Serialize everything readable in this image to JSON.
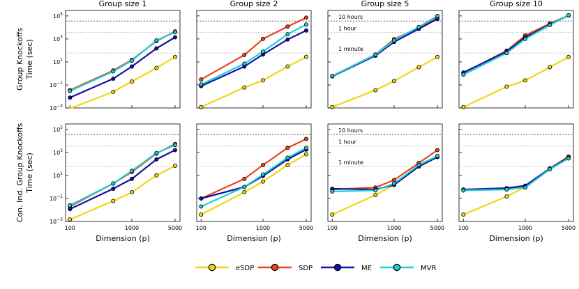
{
  "chart_data": {
    "type": "line",
    "xscale": "log",
    "yscale": "log",
    "column_titles": [
      "Group size 1",
      "Group size 2",
      "Group size 5",
      "Group size 10"
    ],
    "row_labels": [
      [
        "Group Knockoffs",
        "Time (sec)"
      ],
      [
        "Con. Ind. Group Knockoffs",
        "Time (sec)"
      ]
    ],
    "xlabel": "Dimension (p)",
    "x": [
      100,
      500,
      1000,
      2500,
      5000
    ],
    "x_ticks": [
      100,
      1000,
      5000
    ],
    "x_tick_labels": [
      "100",
      "1000",
      "5000"
    ],
    "xlim": [
      85,
      6000
    ],
    "ylim": [
      0.001,
      300000
    ],
    "y_ticks": [
      {
        "value": 0.001,
        "base": "10",
        "exp": "−3"
      },
      {
        "value": 0.1,
        "base": "10",
        "exp": "−1"
      },
      {
        "value": 10,
        "base": "10",
        "exp": "1"
      },
      {
        "value": 1000,
        "base": "10",
        "exp": "3"
      },
      {
        "value": 100000,
        "base": "10",
        "exp": "5"
      }
    ],
    "reference_lines": [
      {
        "label": "10 hours",
        "value": 36000
      },
      {
        "label": "1 hour",
        "value": 3600
      },
      {
        "label": "1 minute",
        "value": 60
      }
    ],
    "colors": {
      "eSDP": "#f2d615",
      "SDP": "#e8461d",
      "ME": "#1111a6",
      "MVR": "#1fcfcf"
    },
    "series_names": [
      "eSDP",
      "SDP",
      "ME",
      "MVR"
    ],
    "panels": [
      {
        "row": 0,
        "col": 0,
        "series": [
          {
            "name": "eSDP",
            "values": [
              0.0009,
              0.025,
              0.2,
              3,
              27
            ]
          },
          {
            "name": "SDP",
            "values": [
              0.035,
              1.8,
              15,
              650,
              4500
            ]
          },
          {
            "name": "ME",
            "values": [
              0.008,
              0.35,
              4,
              150,
              1400
            ]
          },
          {
            "name": "MVR",
            "values": [
              0.03,
              1.5,
              13,
              750,
              3800
            ]
          }
        ]
      },
      {
        "row": 0,
        "col": 1,
        "series": [
          {
            "name": "eSDP",
            "values": [
              0.0012,
              0.06,
              0.25,
              4,
              27
            ]
          },
          {
            "name": "SDP",
            "values": [
              0.3,
              40,
              1000,
              12000,
              70000
            ]
          },
          {
            "name": "ME",
            "values": [
              0.08,
              4,
              45,
              900,
              5500
            ]
          },
          {
            "name": "MVR",
            "values": [
              0.11,
              7,
              80,
              2600,
              18000
            ]
          }
        ]
      },
      {
        "row": 0,
        "col": 2,
        "series": [
          {
            "name": "eSDP",
            "values": [
              0.0012,
              0.035,
              0.22,
              3.5,
              27
            ]
          },
          {
            "name": "SDP",
            "values": [
              0.6,
              45,
              950,
              9000,
              85000
            ]
          },
          {
            "name": "ME",
            "values": [
              0.55,
              35,
              560,
              7500,
              55000
            ]
          },
          {
            "name": "MVR",
            "values": [
              0.6,
              42,
              750,
              11000,
              100000
            ]
          }
        ]
      },
      {
        "row": 0,
        "col": 3,
        "series": [
          {
            "name": "eSDP",
            "values": [
              0.0012,
              0.07,
              0.25,
              3.5,
              27
            ]
          },
          {
            "name": "SDP",
            "values": [
              1.1,
              95,
              2000,
              22000,
              110000
            ]
          },
          {
            "name": "ME",
            "values": [
              1.2,
              80,
              1400,
              18000,
              110000
            ]
          },
          {
            "name": "MVR",
            "values": [
              0.8,
              60,
              1000,
              16000,
              115000
            ]
          }
        ]
      },
      {
        "row": 1,
        "col": 0,
        "series": [
          {
            "name": "eSDP",
            "values": [
              0.0015,
              0.06,
              0.35,
              10,
              70
            ]
          },
          {
            "name": "SDP",
            "values": [
              0.02,
              2,
              20,
              800,
              5500
            ]
          },
          {
            "name": "ME",
            "values": [
              0.012,
              0.7,
              5,
              250,
              1600
            ]
          },
          {
            "name": "MVR",
            "values": [
              0.025,
              2,
              25,
              900,
              4500
            ]
          }
        ]
      },
      {
        "row": 1,
        "col": 1,
        "series": [
          {
            "name": "eSDP",
            "values": [
              0.004,
              0.35,
              3,
              80,
              700
            ]
          },
          {
            "name": "SDP",
            "values": [
              0.1,
              5,
              80,
              2500,
              15000
            ]
          },
          {
            "name": "ME",
            "values": [
              0.1,
              1,
              9,
              250,
              1800
            ]
          },
          {
            "name": "MVR",
            "values": [
              0.02,
              1,
              12,
              350,
              2500
            ]
          }
        ]
      },
      {
        "row": 1,
        "col": 2,
        "series": [
          {
            "name": "eSDP",
            "values": [
              0.004,
              0.2,
              1.5,
              60,
              400
            ]
          },
          {
            "name": "SDP",
            "values": [
              0.6,
              0.9,
              4,
              120,
              1600
            ]
          },
          {
            "name": "ME",
            "values": [
              0.7,
              0.6,
              1.5,
              60,
              400
            ]
          },
          {
            "name": "MVR",
            "values": [
              0.4,
              0.5,
              2,
              80,
              500
            ]
          }
        ]
      },
      {
        "row": 1,
        "col": 3,
        "series": [
          {
            "name": "eSDP",
            "values": [
              0.004,
              0.15,
              1,
              40,
              400
            ]
          },
          {
            "name": "SDP",
            "values": [
              0.5,
              0.7,
              1.2,
              40,
              450
            ]
          },
          {
            "name": "ME",
            "values": [
              0.6,
              0.8,
              1.3,
              40,
              350
            ]
          },
          {
            "name": "MVR",
            "values": [
              0.5,
              0.6,
              0.9,
              35,
              300
            ]
          }
        ]
      }
    ],
    "legend": {
      "position": "bottom-center",
      "entries": [
        "eSDP",
        "SDP",
        "ME",
        "MVR"
      ]
    }
  }
}
